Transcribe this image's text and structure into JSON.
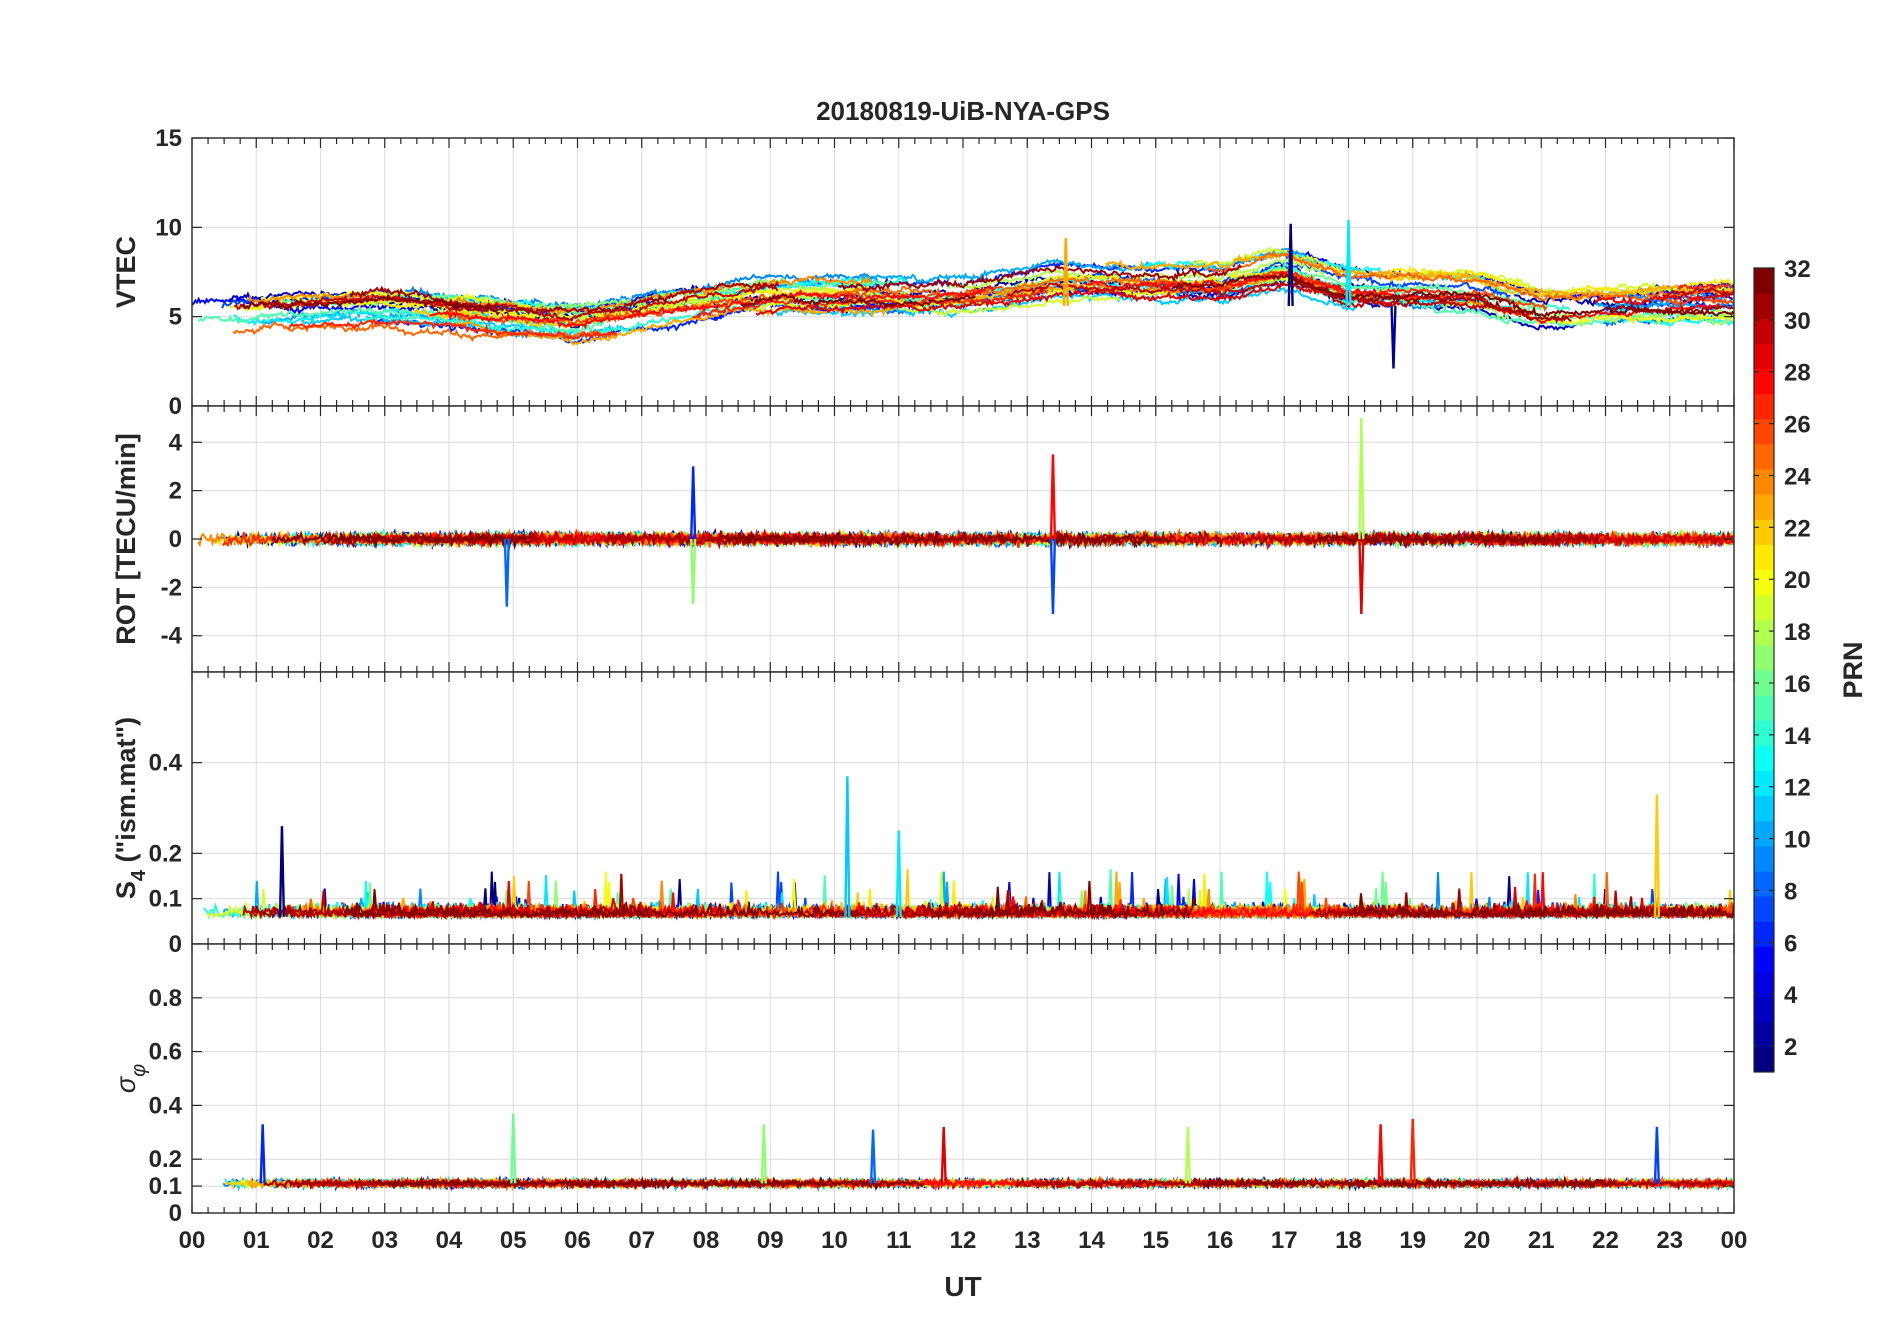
{
  "chart_data": {
    "type": "line",
    "title": "20180819-UiB-NYA-GPS",
    "xlabel": "UT",
    "x_tick_labels": [
      "00",
      "01",
      "02",
      "03",
      "04",
      "05",
      "06",
      "07",
      "08",
      "09",
      "10",
      "11",
      "12",
      "13",
      "14",
      "15",
      "16",
      "17",
      "18",
      "19",
      "20",
      "21",
      "22",
      "23",
      "00"
    ],
    "xlim_hours": [
      0,
      24
    ],
    "colorbar": {
      "label": "PRN",
      "range": [
        1,
        32
      ],
      "ticks": [
        2,
        4,
        6,
        8,
        10,
        12,
        14,
        16,
        18,
        20,
        22,
        24,
        26,
        28,
        30,
        32
      ],
      "colormap": "jet"
    },
    "panels": [
      {
        "id": "vtec",
        "ylabel": "VTEC",
        "ylim": [
          0,
          15
        ],
        "yticks": [
          0,
          5,
          10,
          15
        ],
        "baseline": 5.6,
        "envelope": [
          [
            0,
            5.0
          ],
          [
            3,
            5.5
          ],
          [
            6,
            4.6
          ],
          [
            9,
            6.2
          ],
          [
            12,
            6.4
          ],
          [
            13.5,
            7.2
          ],
          [
            16,
            7.0
          ],
          [
            17,
            7.8
          ],
          [
            18,
            6.8
          ],
          [
            19,
            6.6
          ],
          [
            20,
            6.4
          ],
          [
            21,
            5.5
          ],
          [
            22,
            5.6
          ],
          [
            24,
            5.8
          ]
        ],
        "notable_peaks": [
          {
            "x": 17.1,
            "y": 10.2
          },
          {
            "x": 18.0,
            "y": 10.4
          },
          {
            "x": 13.6,
            "y": 9.4
          },
          {
            "x": 18.7,
            "y": 2.1
          }
        ]
      },
      {
        "id": "rot",
        "ylabel": "ROT [TECU/min]",
        "ylim": [
          -5.5,
          5.5
        ],
        "yticks": [
          -4,
          -2,
          0,
          2,
          4
        ],
        "baseline": 0,
        "notable_peaks": [
          {
            "x": 7.8,
            "y": 3.0
          },
          {
            "x": 7.8,
            "y": -2.7
          },
          {
            "x": 13.4,
            "y": 3.5
          },
          {
            "x": 13.4,
            "y": -3.1
          },
          {
            "x": 18.2,
            "y": 5.0
          },
          {
            "x": 18.2,
            "y": -3.1
          },
          {
            "x": 4.9,
            "y": -2.8
          }
        ]
      },
      {
        "id": "s4",
        "ylabel_main": "S",
        "ylabel_sub": "4",
        "ylabel_tail": " (\"ism.mat\")",
        "ylim": [
          0,
          0.6
        ],
        "yticks": [
          0,
          0.1,
          0.2,
          0.4
        ],
        "baseline": 0.06,
        "notable_peaks": [
          {
            "x": 10.2,
            "y": 0.37
          },
          {
            "x": 22.8,
            "y": 0.33
          },
          {
            "x": 1.4,
            "y": 0.26
          },
          {
            "x": 11.0,
            "y": 0.25
          }
        ]
      },
      {
        "id": "sigma",
        "ylabel_main": "σ",
        "ylabel_sub": "φ",
        "ylim": [
          0,
          1
        ],
        "yticks": [
          0,
          0.1,
          0.2,
          0.4,
          0.6,
          0.8
        ],
        "baseline": 0.11,
        "notable_peaks": [
          {
            "x": 5.0,
            "y": 0.37
          },
          {
            "x": 19.0,
            "y": 0.35
          },
          {
            "x": 1.1,
            "y": 0.33
          },
          {
            "x": 8.9,
            "y": 0.33
          },
          {
            "x": 18.5,
            "y": 0.33
          },
          {
            "x": 22.8,
            "y": 0.32
          },
          {
            "x": 15.5,
            "y": 0.32
          },
          {
            "x": 11.7,
            "y": 0.32
          },
          {
            "x": 10.6,
            "y": 0.31
          }
        ]
      }
    ]
  }
}
